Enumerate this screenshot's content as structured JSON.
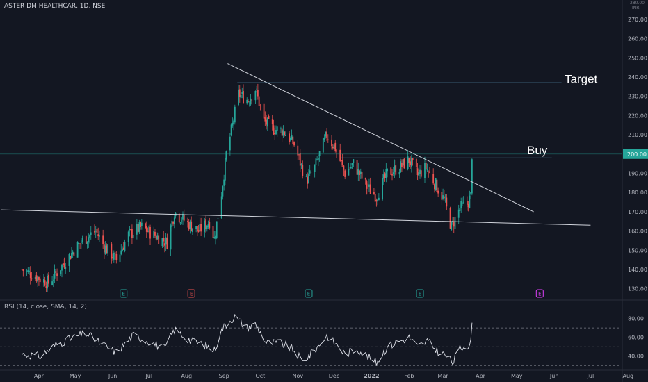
{
  "header": {
    "symbol_line": "ASTER DM HEALTHCAR, 1D, NSE"
  },
  "axis": {
    "currency_top": "280.00",
    "currency": "INR"
  },
  "rsi_panel": {
    "label": "RSI (14, close, SMA, 14, 2)"
  },
  "annotations": {
    "target": "Target",
    "buy": "Buy"
  },
  "price_label": "200.00",
  "event_markers": [
    {
      "date": "2021-06-10",
      "kind": "earnings",
      "glyph": "E",
      "color": "#26a69a"
    },
    {
      "date": "2021-08-05",
      "kind": "earnings",
      "glyph": "E",
      "color": "#ef5350"
    },
    {
      "date": "2021-11-10",
      "kind": "earnings",
      "glyph": "E",
      "color": "#26a69a"
    },
    {
      "date": "2022-02-10",
      "kind": "earnings",
      "glyph": "E",
      "color": "#26a69a"
    },
    {
      "date": "2022-05-20",
      "kind": "upcoming-earnings",
      "glyph": "E",
      "color": "#e040fb"
    }
  ],
  "colors": {
    "background": "#131722",
    "up": "#26a69a",
    "down": "#ef5350",
    "text": "#b2b5be",
    "price_line": "#26a69a"
  },
  "chart_data": [
    {
      "type": "candlestick",
      "title": "ASTER DM HEALTHCAR, 1D, NSE",
      "ylabel": "INR",
      "x_ticks": [
        "Apr",
        "May",
        "Jun",
        "Jul",
        "Aug",
        "Sep",
        "Oct",
        "Nov",
        "Dec",
        "2022",
        "Feb",
        "Mar",
        "Apr",
        "May",
        "Jun",
        "Jul",
        "Aug"
      ],
      "y_ticks": [
        130,
        140,
        150,
        160,
        170,
        180,
        190,
        200,
        210,
        220,
        230,
        240,
        250,
        260,
        270
      ],
      "ylim": [
        127,
        280
      ],
      "price_anchors": [
        [
          "2021-03-18",
          140
        ],
        [
          "2021-03-31",
          136
        ],
        [
          "2021-04-09",
          133
        ],
        [
          "2021-04-20",
          142
        ],
        [
          "2021-04-30",
          150
        ],
        [
          "2021-05-07",
          155
        ],
        [
          "2021-05-18",
          160
        ],
        [
          "2021-05-25",
          152
        ],
        [
          "2021-06-04",
          145
        ],
        [
          "2021-06-14",
          158
        ],
        [
          "2021-06-25",
          162
        ],
        [
          "2021-07-05",
          158
        ],
        [
          "2021-07-16",
          154
        ],
        [
          "2021-07-22",
          170
        ],
        [
          "2021-08-02",
          164
        ],
        [
          "2021-08-11",
          160
        ],
        [
          "2021-08-20",
          165
        ],
        [
          "2021-08-24",
          156
        ],
        [
          "2021-08-30",
          180
        ],
        [
          "2021-09-03",
          200
        ],
        [
          "2021-09-08",
          215
        ],
        [
          "2021-09-13",
          231
        ],
        [
          "2021-09-21",
          228
        ],
        [
          "2021-09-27",
          234
        ],
        [
          "2021-10-04",
          217
        ],
        [
          "2021-10-12",
          213
        ],
        [
          "2021-10-20",
          212
        ],
        [
          "2021-10-29",
          205
        ],
        [
          "2021-11-08",
          186
        ],
        [
          "2021-11-15",
          193
        ],
        [
          "2021-11-25",
          210
        ],
        [
          "2021-12-02",
          203
        ],
        [
          "2021-12-10",
          190
        ],
        [
          "2021-12-17",
          195
        ],
        [
          "2021-12-28",
          183
        ],
        [
          "2022-01-05",
          178
        ],
        [
          "2022-01-14",
          190
        ],
        [
          "2022-01-24",
          193
        ],
        [
          "2022-02-01",
          197
        ],
        [
          "2022-02-08",
          189
        ],
        [
          "2022-02-15",
          193
        ],
        [
          "2022-02-23",
          184
        ],
        [
          "2022-03-02",
          176
        ],
        [
          "2022-03-08",
          162
        ],
        [
          "2022-03-15",
          172
        ],
        [
          "2022-03-21",
          174
        ],
        [
          "2022-03-24",
          178
        ],
        [
          "2022-03-25",
          200
        ]
      ],
      "drawn_levels": {
        "target": 237,
        "buy": 198,
        "current_price": 200
      },
      "trendlines": [
        {
          "name": "falling resistance",
          "from": [
            "2021-09-04",
            247
          ],
          "to": [
            "2022-05-15",
            170
          ]
        },
        {
          "name": "support",
          "from": [
            "2021-03-01",
            171
          ],
          "to": [
            "2022-07-01",
            163
          ]
        }
      ]
    },
    {
      "type": "line",
      "title": "RSI (14, close, SMA, 14, 2)",
      "y_ticks": [
        40,
        60,
        80
      ],
      "ylim": [
        25,
        88
      ],
      "bands": [
        30,
        50,
        70
      ],
      "anchors": [
        [
          "2021-03-18",
          42
        ],
        [
          "2021-04-02",
          40
        ],
        [
          "2021-04-15",
          52
        ],
        [
          "2021-04-30",
          60
        ],
        [
          "2021-05-10",
          64
        ],
        [
          "2021-05-24",
          52
        ],
        [
          "2021-06-04",
          44
        ],
        [
          "2021-06-18",
          62
        ],
        [
          "2021-07-02",
          55
        ],
        [
          "2021-07-14",
          48
        ],
        [
          "2021-07-22",
          68
        ],
        [
          "2021-08-05",
          56
        ],
        [
          "2021-08-16",
          52
        ],
        [
          "2021-08-24",
          46
        ],
        [
          "2021-08-31",
          70
        ],
        [
          "2021-09-06",
          78
        ],
        [
          "2021-09-10",
          82
        ],
        [
          "2021-09-20",
          70
        ],
        [
          "2021-09-27",
          74
        ],
        [
          "2021-10-06",
          54
        ],
        [
          "2021-10-18",
          54
        ],
        [
          "2021-10-29",
          46
        ],
        [
          "2021-11-05",
          34
        ],
        [
          "2021-11-15",
          46
        ],
        [
          "2021-11-25",
          62
        ],
        [
          "2021-12-03",
          52
        ],
        [
          "2021-12-10",
          42
        ],
        [
          "2021-12-20",
          48
        ],
        [
          "2021-12-28",
          40
        ],
        [
          "2022-01-05",
          33
        ],
        [
          "2022-01-14",
          50
        ],
        [
          "2022-01-24",
          56
        ],
        [
          "2022-02-01",
          60
        ],
        [
          "2022-02-08",
          50
        ],
        [
          "2022-02-16",
          56
        ],
        [
          "2022-02-24",
          46
        ],
        [
          "2022-03-04",
          40
        ],
        [
          "2022-03-09",
          33
        ],
        [
          "2022-03-15",
          48
        ],
        [
          "2022-03-22",
          52
        ],
        [
          "2022-03-24",
          58
        ],
        [
          "2022-03-25",
          72
        ]
      ]
    }
  ]
}
